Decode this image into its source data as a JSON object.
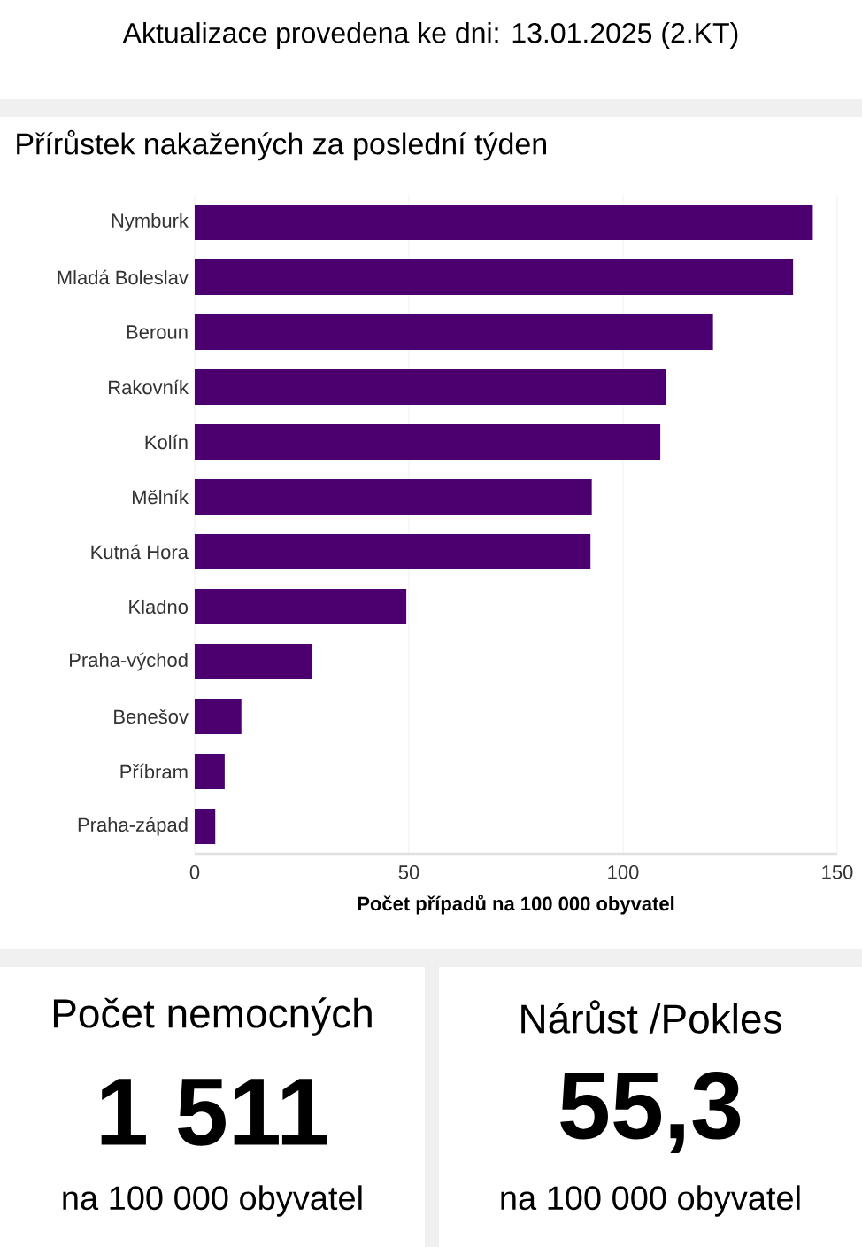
{
  "chart_data": [
    {
      "type": "other",
      "title": "Aktualizace provedena ke dni: 13.01.2025 (2.KT)"
    },
    {
      "type": "bar",
      "orientation": "horizontal",
      "title": "Přírůstek nakažených za poslední týden",
      "xlabel": "Počet případů na 100 000 obyvatel",
      "categories": [
        "Nymburk",
        "Mladá Boleslav",
        "Beroun",
        "Rakovník",
        "Kolín",
        "Mělník",
        "Kutná Hora",
        "Kladno",
        "Praha-východ",
        "Benešov",
        "Příbram",
        "Praha-západ"
      ],
      "values": [
        144.3,
        139.7,
        121,
        110,
        108.7,
        92.7,
        92.4,
        49.4,
        27.4,
        10.9,
        7.0,
        4.8
      ],
      "color": "#4c0070",
      "xlim": [
        0,
        150
      ],
      "xticks": [
        0,
        50,
        100,
        150
      ],
      "grid": "x"
    },
    {
      "type": "other",
      "title": "Počet nemocných",
      "annotations": [
        "1 511",
        "na 100 000 obyvatel"
      ]
    },
    {
      "type": "other",
      "title": "Nárůst /Pokles",
      "annotations": [
        "55,3",
        "na 100 000 obyvatel"
      ]
    }
  ]
}
